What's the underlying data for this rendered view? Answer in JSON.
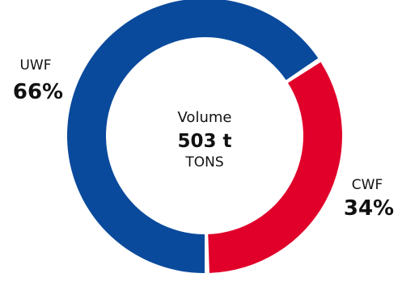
{
  "chart_data": {
    "type": "pie",
    "style": "donut",
    "categories": [
      "UWF",
      "CWF"
    ],
    "values": [
      66,
      34
    ],
    "labels": [
      "66%",
      "34%"
    ],
    "colors": [
      "#0a4a9c",
      "#e1002a"
    ],
    "center": {
      "title": "Volume",
      "value": "503 t",
      "unit": "TONS"
    }
  }
}
